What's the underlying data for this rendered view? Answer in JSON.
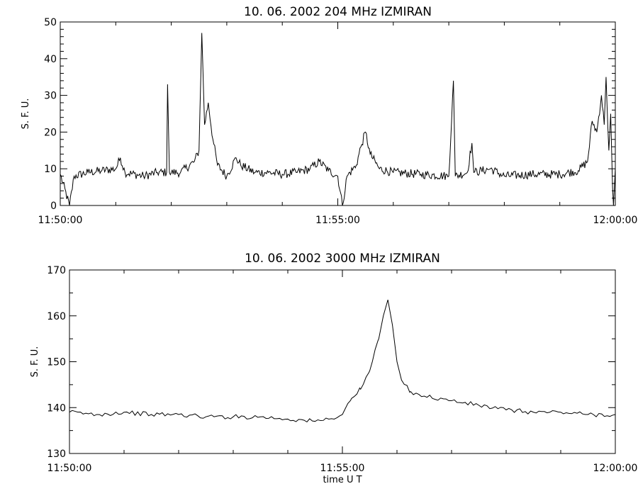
{
  "chart_data": [
    {
      "type": "line",
      "title": "10.  06.  2002    204 MHz    IZMIRAN",
      "ylabel": "S. F. U.",
      "xlabel": "",
      "xlim": [
        "11:50:00",
        "12:00:00"
      ],
      "ylim": [
        0,
        50
      ],
      "xtick_labels": [
        "11:50:00",
        "11:55:00",
        "12:00:00"
      ],
      "ytick_labels": [
        "0",
        "10",
        "20",
        "30",
        "40",
        "50"
      ],
      "grid": false,
      "series": [
        {
          "values": [
            [
              "11:50:00",
              8.5
            ],
            [
              "11:50:10",
              0
            ],
            [
              "11:50:15",
              8
            ],
            [
              "11:50:30",
              9
            ],
            [
              "11:50:45",
              9.5
            ],
            [
              "11:51:00",
              10
            ],
            [
              "11:51:05",
              13
            ],
            [
              "11:51:10",
              9
            ],
            [
              "11:51:30",
              8
            ],
            [
              "11:51:45",
              9
            ],
            [
              "11:51:55",
              9
            ],
            [
              "11:51:56",
              33
            ],
            [
              "11:51:58",
              9
            ],
            [
              "11:52:10",
              9
            ],
            [
              "11:52:25",
              12
            ],
            [
              "11:52:30",
              15
            ],
            [
              "11:52:33",
              47
            ],
            [
              "11:52:36",
              22
            ],
            [
              "11:52:40",
              28
            ],
            [
              "11:52:45",
              18
            ],
            [
              "11:52:50",
              11
            ],
            [
              "11:53:00",
              8
            ],
            [
              "11:53:10",
              13
            ],
            [
              "11:53:15",
              11
            ],
            [
              "11:53:30",
              9
            ],
            [
              "11:53:45",
              9
            ],
            [
              "11:54:00",
              8.5
            ],
            [
              "11:54:15",
              9
            ],
            [
              "11:54:30",
              10
            ],
            [
              "11:54:40",
              12
            ],
            [
              "11:54:50",
              9.5
            ],
            [
              "11:55:00",
              8
            ],
            [
              "11:55:05",
              0
            ],
            [
              "11:55:10",
              8
            ],
            [
              "11:55:20",
              11
            ],
            [
              "11:55:25",
              16
            ],
            [
              "11:55:30",
              20
            ],
            [
              "11:55:35",
              14
            ],
            [
              "11:55:45",
              10
            ],
            [
              "11:56:00",
              9
            ],
            [
              "11:56:30",
              8.5
            ],
            [
              "11:57:00",
              8
            ],
            [
              "11:57:05",
              34
            ],
            [
              "11:57:07",
              8
            ],
            [
              "11:57:20",
              9
            ],
            [
              "11:57:25",
              17
            ],
            [
              "11:57:27",
              9
            ],
            [
              "11:57:45",
              10
            ],
            [
              "11:58:00",
              8
            ],
            [
              "11:58:30",
              8.5
            ],
            [
              "11:59:00",
              8.5
            ],
            [
              "11:59:20",
              9.5
            ],
            [
              "11:59:30",
              12
            ],
            [
              "11:59:35",
              23
            ],
            [
              "11:59:40",
              20
            ],
            [
              "11:59:45",
              30
            ],
            [
              "11:59:48",
              22
            ],
            [
              "11:59:50",
              35
            ],
            [
              "11:59:53",
              15
            ],
            [
              "11:59:55",
              25
            ],
            [
              "11:59:57",
              5
            ],
            [
              "11:59:58",
              0
            ],
            [
              "12:00:00",
              10
            ]
          ]
        }
      ]
    },
    {
      "type": "line",
      "title": "10.  06.  2002    3000 MHz    IZMIRAN",
      "ylabel": "S. F. U.",
      "xlabel": "time   U T",
      "xlim": [
        "11:50:00",
        "12:00:00"
      ],
      "ylim": [
        130,
        170
      ],
      "xtick_labels": [
        "11:50:00",
        "11:55:00",
        "12:00:00"
      ],
      "ytick_labels": [
        "130",
        "140",
        "150",
        "160",
        "170"
      ],
      "grid": false,
      "series": [
        {
          "values": [
            [
              "11:50:00",
              139
            ],
            [
              "11:50:30",
              138.5
            ],
            [
              "11:51:00",
              139
            ],
            [
              "11:51:30",
              138.5
            ],
            [
              "11:52:00",
              138.5
            ],
            [
              "11:52:30",
              138
            ],
            [
              "11:53:00",
              138
            ],
            [
              "11:53:30",
              138
            ],
            [
              "11:54:00",
              137.5
            ],
            [
              "11:54:30",
              137
            ],
            [
              "11:54:45",
              137.5
            ],
            [
              "11:55:00",
              138.5
            ],
            [
              "11:55:10",
              142
            ],
            [
              "11:55:20",
              144
            ],
            [
              "11:55:30",
              148
            ],
            [
              "11:55:40",
              155
            ],
            [
              "11:55:45",
              160
            ],
            [
              "11:55:50",
              163.5
            ],
            [
              "11:55:55",
              158
            ],
            [
              "11:56:00",
              150
            ],
            [
              "11:56:05",
              146
            ],
            [
              "11:56:15",
              143.5
            ],
            [
              "11:56:30",
              142.5
            ],
            [
              "11:57:00",
              141.5
            ],
            [
              "11:57:30",
              140.5
            ],
            [
              "11:58:00",
              139.5
            ],
            [
              "11:58:30",
              139
            ],
            [
              "11:59:00",
              139
            ],
            [
              "11:59:30",
              138.5
            ],
            [
              "12:00:00",
              138.5
            ]
          ]
        }
      ]
    }
  ]
}
